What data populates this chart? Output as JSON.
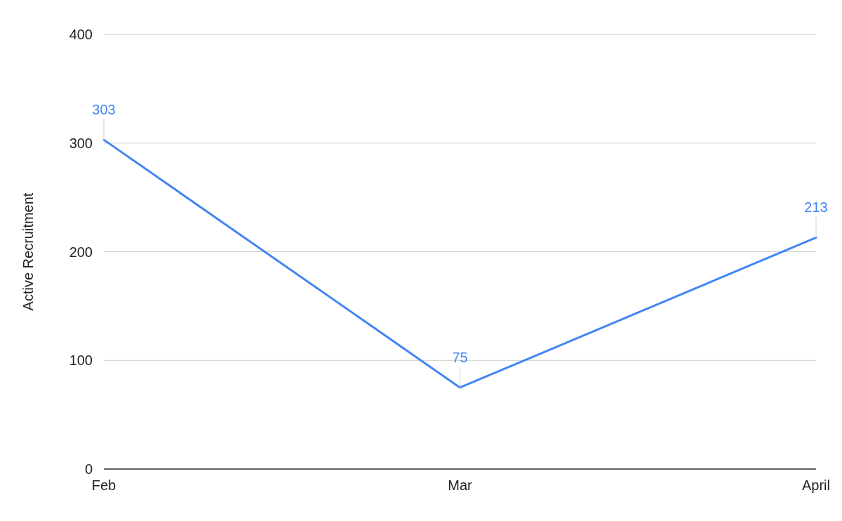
{
  "chart_data": {
    "type": "line",
    "ylabel": "Active Recruitment",
    "categories": [
      "Feb",
      "Mar",
      "April"
    ],
    "series": [
      {
        "color": "#4285f4",
        "values": [
          303,
          75,
          213
        ]
      }
    ],
    "ylim": [
      0,
      400
    ],
    "yticks": [
      0,
      100,
      200,
      300,
      400
    ],
    "grid": "y",
    "legend": false,
    "marker": "none",
    "line_style": "solid",
    "data_labels": true
  }
}
